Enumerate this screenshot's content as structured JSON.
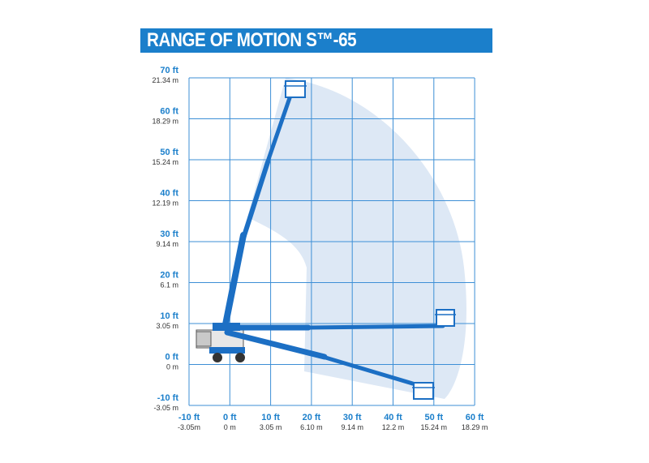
{
  "title": "RANGE OF MOTION S™-65",
  "colors": {
    "title_bg": "#1b7fcb",
    "title_text": "#ffffff",
    "grid": "#3d8fd6",
    "envelope": "#dde8f5",
    "boom": "#1c6fc4",
    "ft_label": "#1b7fcb",
    "m_label": "#333333"
  },
  "y_axis": {
    "ticks": [
      {
        "ft": "70 ft",
        "m": "21.34 m"
      },
      {
        "ft": "60 ft",
        "m": "18.29 m"
      },
      {
        "ft": "50 ft",
        "m": "15.24 m"
      },
      {
        "ft": "40 ft",
        "m": "12.19 m"
      },
      {
        "ft": "30 ft",
        "m": "9.14 m"
      },
      {
        "ft": "20 ft",
        "m": "6.1 m"
      },
      {
        "ft": "10 ft",
        "m": "3.05 m"
      },
      {
        "ft": "0 ft",
        "m": "0 m"
      },
      {
        "ft": "-10 ft",
        "m": "-3.05 m"
      }
    ]
  },
  "x_axis": {
    "ticks": [
      {
        "ft": "-10 ft",
        "m": "-3.05m"
      },
      {
        "ft": "0 ft",
        "m": "0 m"
      },
      {
        "ft": "10 ft",
        "m": "3.05 m"
      },
      {
        "ft": "20 ft",
        "m": "6.10 m"
      },
      {
        "ft": "30 ft",
        "m": "9.14 m"
      },
      {
        "ft": "40 ft",
        "m": "12.2 m"
      },
      {
        "ft": "50 ft",
        "m": "15.24 m"
      },
      {
        "ft": "60 ft",
        "m": "18.29 m"
      }
    ]
  },
  "boom_positions": [
    "max-height",
    "horizontal-reach",
    "below-grade"
  ]
}
